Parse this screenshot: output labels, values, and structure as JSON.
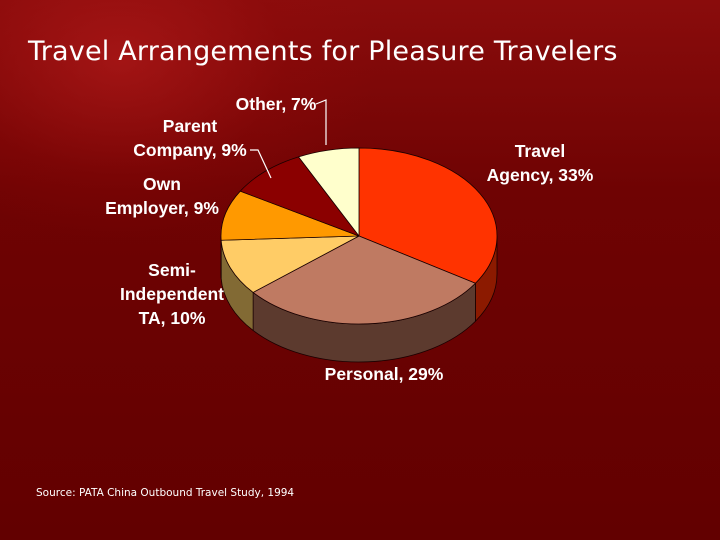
{
  "slide": {
    "title": "Travel Arrangements for Pleasure Travelers",
    "source": "Source:  PATA China Outbound Travel Study, 1994"
  },
  "colors": {
    "background": "#6a0000",
    "text": "#ffffff",
    "label_text": "#ffffff"
  },
  "chart_data": {
    "type": "pie",
    "style": "3d",
    "units": "%",
    "title": "",
    "slices": [
      {
        "label": "Travel Agency",
        "value": 33,
        "display": [
          "Travel",
          "Agency, 33%"
        ],
        "color": "#ff3300",
        "side_color": "#8c1a00"
      },
      {
        "label": "Personal",
        "value": 29,
        "display": [
          "Personal, 29%"
        ],
        "color": "#bf7a62",
        "side_color": "#5c3a2e"
      },
      {
        "label": "Semi-Independent TA",
        "value": 10,
        "display": [
          "Semi-",
          "Independent",
          "TA, 10%"
        ],
        "color": "#ffcc66",
        "side_color": "#826a34"
      },
      {
        "label": "Own Employer",
        "value": 9,
        "display": [
          "Own",
          "Employer, 9%"
        ],
        "color": "#ff9900",
        "side_color": "#7f4c00"
      },
      {
        "label": "Parent Company",
        "value": 9,
        "display": [
          "Parent",
          "Company, 9%"
        ],
        "color": "#8b0000",
        "side_color": "#450000"
      },
      {
        "label": "Other",
        "value": 7,
        "display": [
          "Other, 7%"
        ],
        "color": "#ffffcc",
        "side_color": "#8a8a66"
      }
    ]
  }
}
